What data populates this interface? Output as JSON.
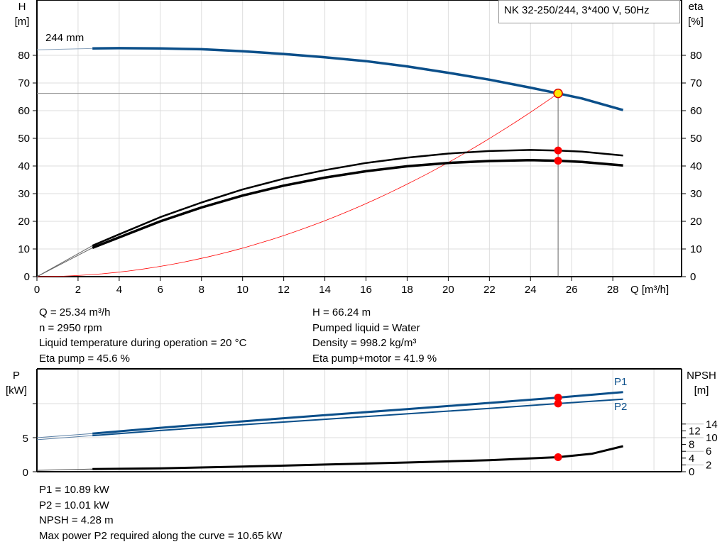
{
  "chart_data": [
    {
      "type": "line",
      "title": "NK 32-250/244, 3*400 V, 50Hz",
      "xlabel": "Q [m³/h]",
      "ylabel": [
        "H",
        "[m]"
      ],
      "ylabel_right": [
        "eta",
        "[%]"
      ],
      "xlim": [
        0,
        31.3
      ],
      "ylim": [
        0,
        100
      ],
      "xticks": [
        0,
        2,
        4,
        6,
        8,
        10,
        12,
        14,
        16,
        18,
        20,
        22,
        24,
        26,
        28
      ],
      "yticks": [
        0,
        10,
        20,
        30,
        40,
        50,
        60,
        70,
        80
      ],
      "grid": true,
      "annotation": "244 mm",
      "series": [
        {
          "id": "H",
          "color": "#0b4f8a",
          "extrapolated": [
            [
              0,
              82.0
            ],
            [
              2.7,
              82.5
            ]
          ],
          "values": [
            [
              2.7,
              82.5
            ],
            [
              4,
              82.6
            ],
            [
              6,
              82.5
            ],
            [
              8,
              82.2
            ],
            [
              10,
              81.5
            ],
            [
              12,
              80.5
            ],
            [
              14,
              79.3
            ],
            [
              16,
              77.9
            ],
            [
              18,
              76.0
            ],
            [
              20,
              73.7
            ],
            [
              22,
              71.2
            ],
            [
              24,
              68.3
            ],
            [
              25.34,
              66.24
            ],
            [
              26.5,
              64.4
            ],
            [
              28.5,
              60.2
            ]
          ]
        },
        {
          "id": "eta-pump",
          "color": "#000000",
          "extrapolated": [
            [
              0,
              0
            ],
            [
              2.7,
              11.2
            ]
          ],
          "values": [
            [
              2.7,
              11.2
            ],
            [
              4,
              15.3
            ],
            [
              6,
              21.5
            ],
            [
              8,
              26.8
            ],
            [
              10,
              31.5
            ],
            [
              12,
              35.4
            ],
            [
              14,
              38.5
            ],
            [
              16,
              41.1
            ],
            [
              18,
              43.0
            ],
            [
              20,
              44.5
            ],
            [
              22,
              45.4
            ],
            [
              24,
              45.8
            ],
            [
              25.34,
              45.6
            ],
            [
              26.5,
              45.2
            ],
            [
              28.5,
              43.8
            ]
          ]
        },
        {
          "id": "eta-pump-motor",
          "color": "#000000",
          "extrapolated": [
            [
              0,
              0
            ],
            [
              2.7,
              10.4
            ]
          ],
          "values": [
            [
              2.7,
              10.4
            ],
            [
              4,
              14.2
            ],
            [
              6,
              20.0
            ],
            [
              8,
              25.0
            ],
            [
              10,
              29.3
            ],
            [
              12,
              32.9
            ],
            [
              14,
              35.8
            ],
            [
              16,
              38.1
            ],
            [
              18,
              39.9
            ],
            [
              20,
              41.1
            ],
            [
              22,
              41.8
            ],
            [
              24,
              42.1
            ],
            [
              25.34,
              41.9
            ],
            [
              26.5,
              41.5
            ],
            [
              28.5,
              40.2
            ]
          ]
        },
        {
          "id": "system-curve",
          "color": "#ff0000",
          "k": 0.10316,
          "qmax": 25.34
        }
      ],
      "duty_point": {
        "Q": 25.34,
        "H": 66.24,
        "eta_pump": 45.6,
        "eta_total": 41.9
      }
    },
    {
      "type": "line",
      "xlim": [
        0,
        31.3
      ],
      "ylabel": [
        "P",
        "[kW]"
      ],
      "ylabel_right": [
        "NPSH",
        "[m]"
      ],
      "ylim": [
        0,
        15
      ],
      "ylim_right": [
        0,
        30
      ],
      "yticks": [
        0,
        5
      ],
      "yticks_right": [
        0,
        2,
        4,
        6,
        8,
        10,
        12,
        14
      ],
      "grid": true,
      "series": [
        {
          "id": "P1",
          "name": "P1",
          "color": "#0b4f8a",
          "extrapolated": [
            [
              0,
              5.0
            ],
            [
              2.7,
              5.6
            ]
          ],
          "values": [
            [
              2.7,
              5.6
            ],
            [
              6,
              6.45
            ],
            [
              10,
              7.4
            ],
            [
              14,
              8.3
            ],
            [
              18,
              9.2
            ],
            [
              22,
              10.1
            ],
            [
              25.34,
              10.89
            ],
            [
              28.5,
              11.7
            ]
          ]
        },
        {
          "id": "P2",
          "name": "P2",
          "color": "#0b4f8a",
          "extrapolated": [
            [
              0,
              4.7
            ],
            [
              2.7,
              5.3
            ]
          ],
          "values": [
            [
              2.7,
              5.3
            ],
            [
              6,
              6.05
            ],
            [
              10,
              6.9
            ],
            [
              14,
              7.7
            ],
            [
              18,
              8.5
            ],
            [
              22,
              9.3
            ],
            [
              25.34,
              10.01
            ],
            [
              28.5,
              10.65
            ]
          ]
        },
        {
          "id": "NPSH",
          "color": "#000000",
          "axis": "right",
          "extrapolated": [
            [
              0,
              0.4
            ],
            [
              2.7,
              0.8
            ]
          ],
          "values": [
            [
              2.7,
              0.8
            ],
            [
              6,
              1.0
            ],
            [
              10,
              1.5
            ],
            [
              14,
              2.1
            ],
            [
              18,
              2.7
            ],
            [
              22,
              3.4
            ],
            [
              25.34,
              4.28
            ],
            [
              27,
              5.3
            ],
            [
              28.5,
              7.5
            ]
          ]
        }
      ],
      "duty_point": {
        "P1": 10.89,
        "P2": 10.01,
        "NPSH": 4.28
      }
    }
  ],
  "info_top": {
    "left": [
      "Q = 25.34 m³/h",
      "n = 2950 rpm",
      "Liquid temperature during operation = 20 °C",
      "Eta pump = 45.6 %"
    ],
    "right": [
      "H = 66.24 m",
      "Pumped liquid = Water",
      "Density = 998.2 kg/m³",
      "Eta pump+motor = 41.9 %"
    ]
  },
  "info_bottom": [
    "P1 = 10.89 kW",
    "P2 = 10.01 kW",
    "NPSH = 4.28 m",
    "Max power P2 required along the curve = 10.65 kW"
  ]
}
